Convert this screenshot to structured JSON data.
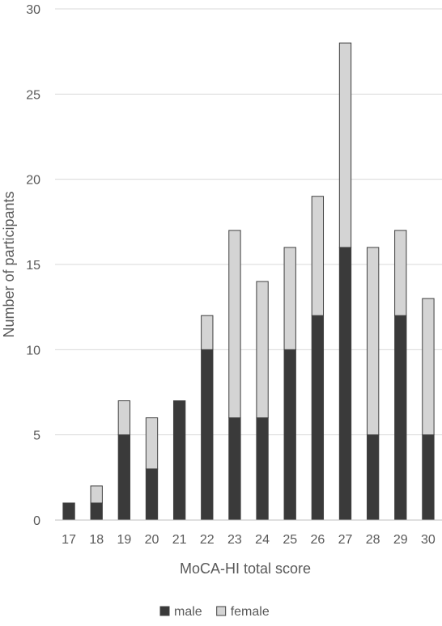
{
  "chart_data": {
    "type": "bar",
    "stacked": true,
    "categories": [
      "17",
      "18",
      "19",
      "20",
      "21",
      "22",
      "23",
      "24",
      "25",
      "26",
      "27",
      "28",
      "29",
      "30"
    ],
    "series": [
      {
        "name": "male",
        "values": [
          1,
          1,
          5,
          3,
          7,
          10,
          6,
          6,
          10,
          12,
          16,
          5,
          12,
          5
        ],
        "color": "#3a3a3a"
      },
      {
        "name": "female",
        "values": [
          0,
          1,
          2,
          3,
          0,
          2,
          11,
          8,
          6,
          7,
          12,
          11,
          5,
          8
        ],
        "color": "#d4d4d4"
      }
    ],
    "xlabel": "MoCA-HI total score",
    "ylabel": "Number of participants",
    "ylim": [
      0,
      30
    ],
    "yticks": [
      0,
      5,
      10,
      15,
      20,
      25,
      30
    ],
    "grid": true,
    "legend_position": "bottom"
  }
}
